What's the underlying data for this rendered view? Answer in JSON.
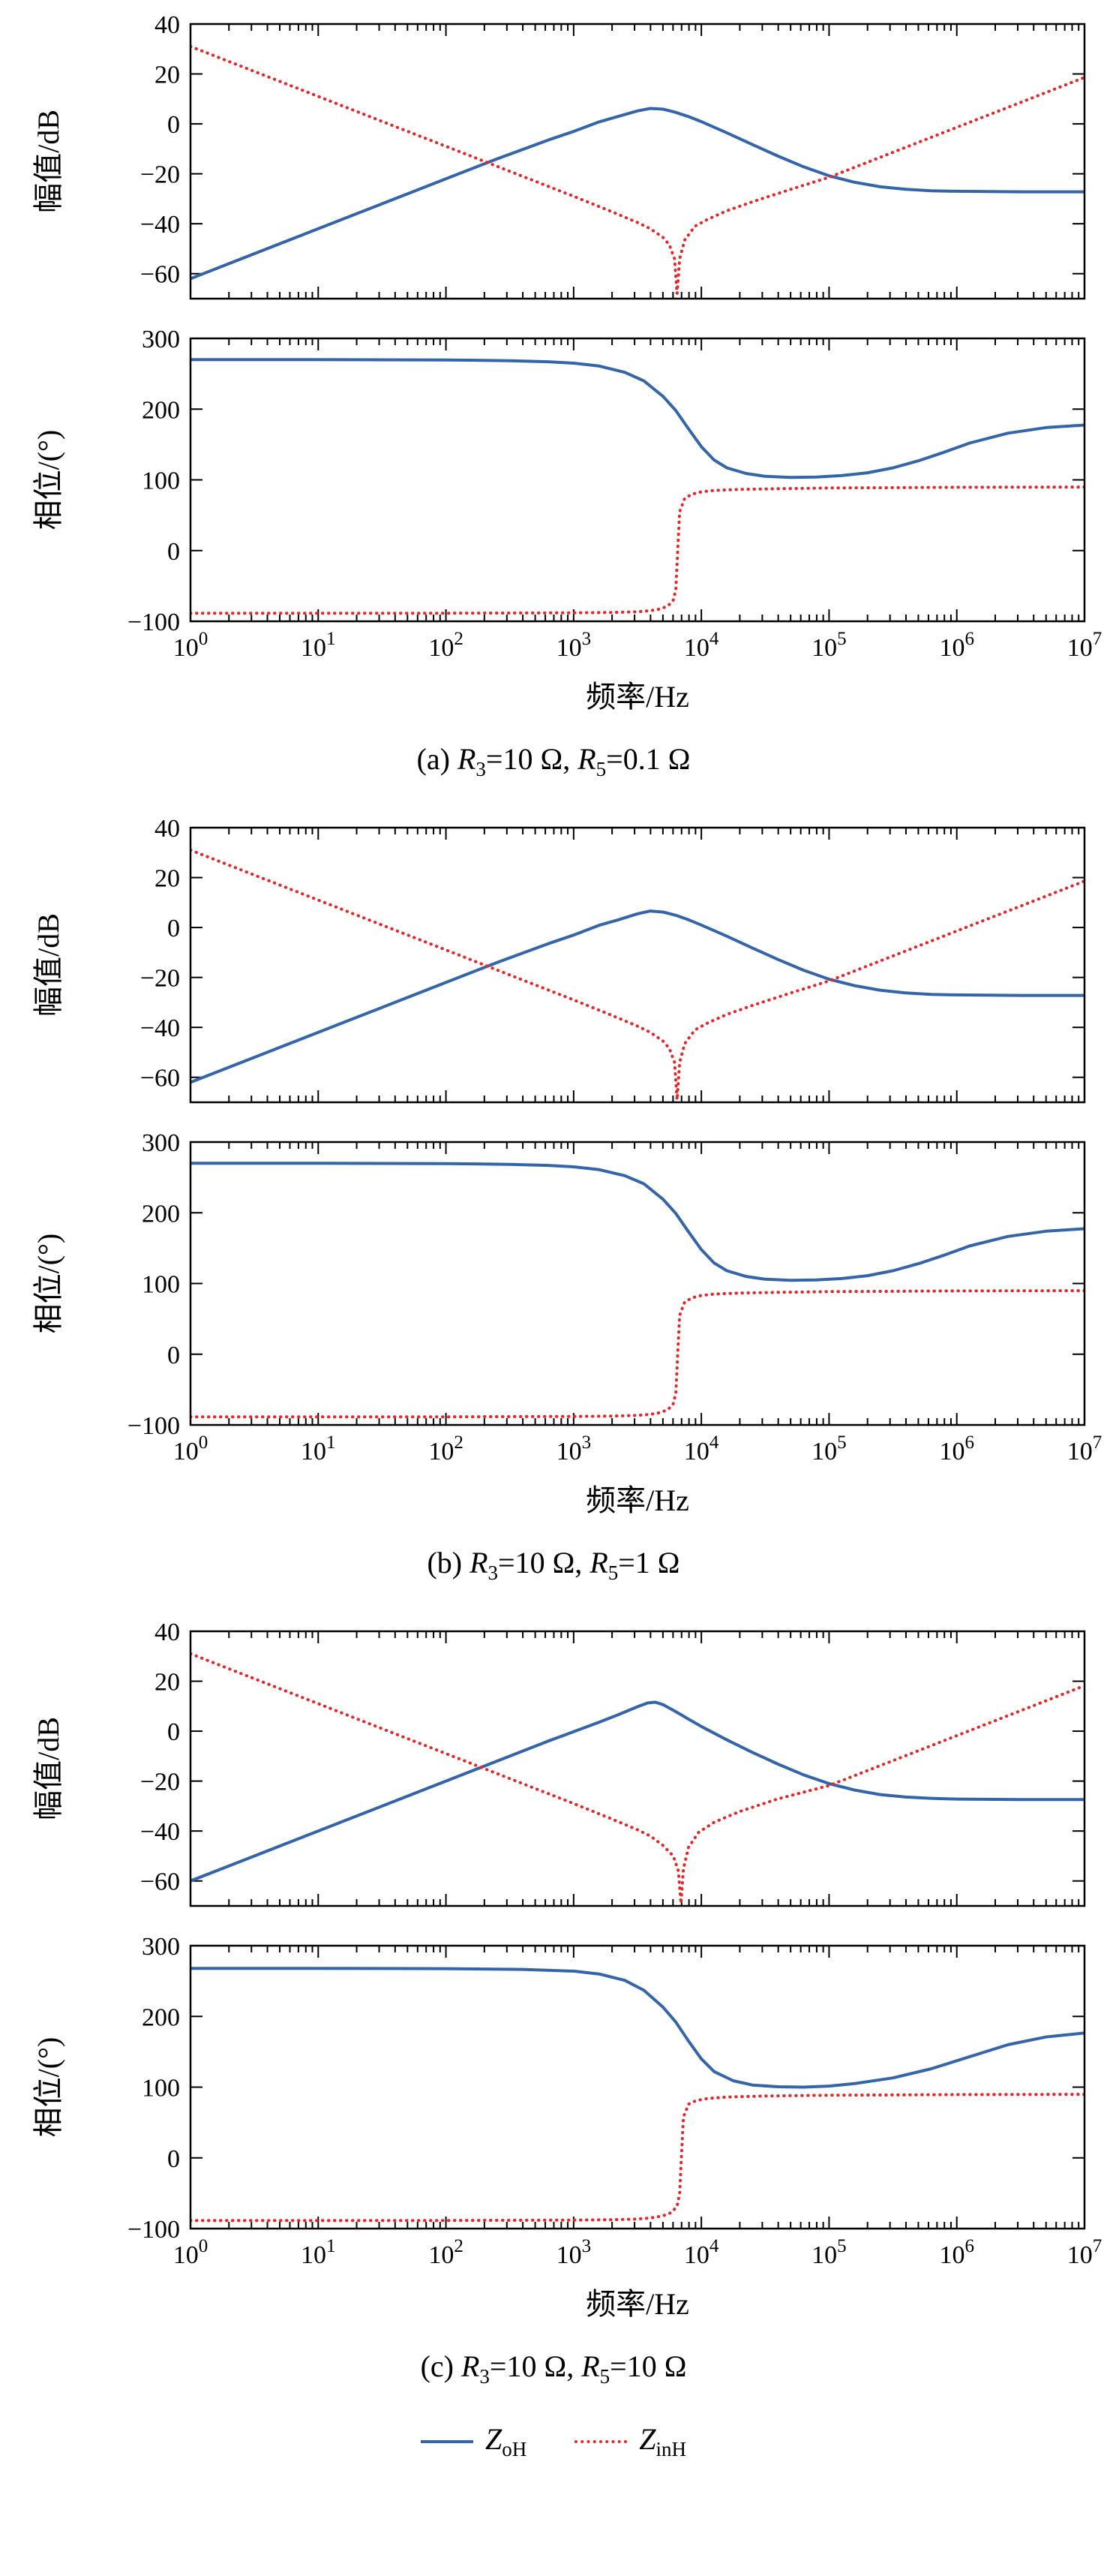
{
  "figures": [
    {
      "id": "a",
      "caption": {
        "prefix": "(a) ",
        "var1": "R",
        "sub1": "3",
        "mid": "=10 Ω, ",
        "var2": "R",
        "sub2": "5",
        "val2": "=0.1 Ω"
      }
    },
    {
      "id": "b",
      "caption": {
        "prefix": "(b) ",
        "var1": "R",
        "sub1": "3",
        "mid": "=10 Ω, ",
        "var2": "R",
        "sub2": "5",
        "val2": "=1 Ω"
      }
    },
    {
      "id": "c",
      "caption": {
        "prefix": "(c) ",
        "var1": "R",
        "sub1": "3",
        "mid": "=10 Ω, ",
        "var2": "R",
        "sub2": "5",
        "val2": "=10 Ω"
      }
    }
  ],
  "legend": {
    "items": [
      {
        "var": "Z",
        "sub": "oH",
        "color": "#3465aa",
        "style": "solid"
      },
      {
        "var": "Z",
        "sub": "inH",
        "color": "#e8262a",
        "style": "dotted"
      }
    ]
  },
  "colors": {
    "blue": "#3465aa",
    "red": "#e8262a",
    "axis": "#000000"
  },
  "chart_data": [
    {
      "id": "a-mag",
      "figure": "a",
      "panel": "top",
      "type": "line",
      "xscale": "log",
      "x_unit": "log10(Hz)",
      "xlim": [
        0,
        7
      ],
      "ylim": [
        -70,
        40
      ],
      "yticks": [
        40,
        20,
        0,
        -20,
        -40,
        -60
      ],
      "xticks_exp": [
        0,
        1,
        2,
        3,
        4,
        5,
        6,
        7
      ],
      "show_xtick_labels": false,
      "xlabel": "",
      "ylabel": "幅值/dB",
      "series": [
        {
          "name": "ZoH",
          "color": "#3465aa",
          "style": "solid",
          "x": [
            0,
            0.4,
            0.8,
            1.2,
            1.6,
            2.0,
            2.4,
            2.8,
            3.0,
            3.2,
            3.35,
            3.5,
            3.6,
            3.7,
            3.8,
            3.9,
            4.0,
            4.2,
            4.4,
            4.6,
            4.8,
            5.0,
            5.2,
            5.4,
            5.6,
            5.8,
            6.0,
            6.5,
            7.0
          ],
          "y": [
            -62,
            -54,
            -46,
            -38,
            -30,
            -22,
            -14,
            -6.5,
            -3,
            0.8,
            3.0,
            5.2,
            6.2,
            5.9,
            4.6,
            2.9,
            0.9,
            -3.6,
            -8.3,
            -12.9,
            -17.2,
            -20.8,
            -23.4,
            -25.2,
            -26.2,
            -26.8,
            -27,
            -27.2,
            -27.2
          ]
        },
        {
          "name": "ZinH",
          "color": "#e8262a",
          "style": "dotted",
          "x": [
            0,
            0.5,
            1.0,
            1.5,
            2.0,
            2.5,
            3.0,
            3.3,
            3.5,
            3.6,
            3.7,
            3.75,
            3.79,
            3.81,
            3.83,
            3.87,
            3.95,
            4.05,
            4.2,
            4.4,
            4.7,
            5.0,
            5.5,
            6.0,
            6.5,
            7.0
          ],
          "y": [
            31,
            21,
            11,
            1,
            -9,
            -19,
            -29,
            -35.2,
            -39.5,
            -42,
            -45.5,
            -48.5,
            -54,
            -68,
            -54,
            -46.5,
            -41,
            -38.2,
            -34.8,
            -31.2,
            -26.2,
            -21.4,
            -11.4,
            -1.4,
            8.6,
            18.6
          ]
        }
      ]
    },
    {
      "id": "a-phase",
      "figure": "a",
      "panel": "bottom",
      "type": "line",
      "xscale": "log",
      "x_unit": "log10(Hz)",
      "xlim": [
        0,
        7
      ],
      "ylim": [
        -100,
        300
      ],
      "yticks": [
        300,
        200,
        100,
        0,
        -100
      ],
      "xticks_exp": [
        0,
        1,
        2,
        3,
        4,
        5,
        6,
        7
      ],
      "show_xtick_labels": true,
      "xlabel": "频率/Hz",
      "ylabel": "相位/(°)",
      "series": [
        {
          "name": "ZoH",
          "color": "#3465aa",
          "style": "solid",
          "x": [
            0,
            1.0,
            2.0,
            2.5,
            2.8,
            3.0,
            3.2,
            3.4,
            3.55,
            3.7,
            3.8,
            3.9,
            4.0,
            4.1,
            4.2,
            4.35,
            4.5,
            4.7,
            4.9,
            5.1,
            5.3,
            5.5,
            5.7,
            5.9,
            6.1,
            6.4,
            6.7,
            7.0
          ],
          "y": [
            270,
            270,
            269.5,
            268.5,
            267,
            265,
            261,
            252,
            240,
            218,
            198,
            172,
            147,
            128,
            117,
            109,
            105,
            103.5,
            104,
            106,
            110,
            117,
            127,
            139,
            152,
            166,
            174,
            177.5
          ]
        },
        {
          "name": "ZinH",
          "color": "#e8262a",
          "style": "dotted",
          "x": [
            0,
            1,
            2,
            3,
            3.3,
            3.5,
            3.6,
            3.68,
            3.74,
            3.78,
            3.8,
            3.815,
            3.83,
            3.87,
            3.93,
            4.0,
            4.1,
            4.3,
            4.6,
            5.0,
            5.5,
            6.0,
            7.0
          ],
          "y": [
            -88.5,
            -88.5,
            -88.5,
            -88,
            -87.5,
            -86.5,
            -85,
            -82.5,
            -78,
            -70,
            -55,
            0,
            55,
            74,
            80,
            83,
            85,
            86.5,
            87.5,
            88.5,
            89,
            89.5,
            89.8
          ]
        }
      ]
    },
    {
      "id": "b-mag",
      "figure": "b",
      "panel": "top",
      "type": "line",
      "xscale": "log",
      "x_unit": "log10(Hz)",
      "xlim": [
        0,
        7
      ],
      "ylim": [
        -70,
        40
      ],
      "yticks": [
        40,
        20,
        0,
        -20,
        -40,
        -60
      ],
      "xticks_exp": [
        0,
        1,
        2,
        3,
        4,
        5,
        6,
        7
      ],
      "show_xtick_labels": false,
      "xlabel": "",
      "ylabel": "幅值/dB",
      "series": [
        {
          "name": "ZoH",
          "color": "#3465aa",
          "style": "solid",
          "x": [
            0,
            0.4,
            0.8,
            1.2,
            1.6,
            2.0,
            2.4,
            2.8,
            3.0,
            3.2,
            3.35,
            3.5,
            3.6,
            3.7,
            3.8,
            3.9,
            4.0,
            4.2,
            4.4,
            4.6,
            4.8,
            5.0,
            5.2,
            5.4,
            5.6,
            5.8,
            6.0,
            6.5,
            7.0
          ],
          "y": [
            -62,
            -54,
            -46,
            -38,
            -30,
            -22,
            -14,
            -6.5,
            -3,
            0.9,
            3.1,
            5.5,
            6.6,
            6.2,
            4.9,
            3.1,
            1.0,
            -3.5,
            -8.2,
            -12.8,
            -17.1,
            -20.7,
            -23.3,
            -25.1,
            -26.2,
            -26.8,
            -27,
            -27.2,
            -27.2
          ]
        },
        {
          "name": "ZinH",
          "color": "#e8262a",
          "style": "dotted",
          "x": [
            0,
            0.5,
            1.0,
            1.5,
            2.0,
            2.5,
            3.0,
            3.3,
            3.5,
            3.6,
            3.7,
            3.75,
            3.79,
            3.81,
            3.83,
            3.87,
            3.95,
            4.05,
            4.2,
            4.4,
            4.7,
            5.0,
            5.5,
            6.0,
            6.5,
            7.0
          ],
          "y": [
            31,
            21,
            11,
            1,
            -9,
            -19,
            -29,
            -35.2,
            -39.5,
            -42,
            -45.5,
            -48.5,
            -54,
            -69,
            -54,
            -46.5,
            -41,
            -38.2,
            -34.8,
            -31.2,
            -26.2,
            -21.4,
            -11.4,
            -1.4,
            8.6,
            18.6
          ]
        }
      ]
    },
    {
      "id": "b-phase",
      "figure": "b",
      "panel": "bottom",
      "type": "line",
      "xscale": "log",
      "x_unit": "log10(Hz)",
      "xlim": [
        0,
        7
      ],
      "ylim": [
        -100,
        300
      ],
      "yticks": [
        300,
        200,
        100,
        0,
        -100
      ],
      "xticks_exp": [
        0,
        1,
        2,
        3,
        4,
        5,
        6,
        7
      ],
      "show_xtick_labels": true,
      "xlabel": "频率/Hz",
      "ylabel": "相位/(°)",
      "series": [
        {
          "name": "ZoH",
          "color": "#3465aa",
          "style": "solid",
          "x": [
            0,
            1.0,
            2.0,
            2.5,
            2.8,
            3.0,
            3.2,
            3.4,
            3.55,
            3.7,
            3.8,
            3.9,
            4.0,
            4.1,
            4.2,
            4.35,
            4.5,
            4.7,
            4.9,
            5.1,
            5.3,
            5.5,
            5.7,
            5.9,
            6.1,
            6.4,
            6.7,
            7.0
          ],
          "y": [
            270,
            270,
            269.5,
            268.5,
            267,
            265,
            261,
            252.5,
            241,
            219,
            199,
            173,
            148,
            129,
            118,
            110,
            106,
            104.5,
            105,
            107,
            111,
            118,
            128,
            140,
            153,
            166.5,
            174,
            177.5
          ]
        },
        {
          "name": "ZinH",
          "color": "#e8262a",
          "style": "dotted",
          "x": [
            0,
            1,
            2,
            3,
            3.3,
            3.5,
            3.6,
            3.68,
            3.74,
            3.78,
            3.8,
            3.815,
            3.83,
            3.87,
            3.93,
            4.0,
            4.1,
            4.3,
            4.6,
            5.0,
            5.5,
            6.0,
            7.0
          ],
          "y": [
            -88.5,
            -88.5,
            -88.5,
            -88,
            -87.5,
            -86.5,
            -85,
            -82.5,
            -78,
            -70,
            -55,
            0,
            55,
            74,
            80,
            83,
            85,
            86.5,
            87.5,
            88.5,
            89,
            89.5,
            89.8
          ]
        }
      ]
    },
    {
      "id": "c-mag",
      "figure": "c",
      "panel": "top",
      "type": "line",
      "xscale": "log",
      "x_unit": "log10(Hz)",
      "xlim": [
        0,
        7
      ],
      "ylim": [
        -70,
        40
      ],
      "yticks": [
        40,
        20,
        0,
        -20,
        -40,
        -60
      ],
      "xticks_exp": [
        0,
        1,
        2,
        3,
        4,
        5,
        6,
        7
      ],
      "show_xtick_labels": false,
      "xlabel": "",
      "ylabel": "幅值/dB",
      "series": [
        {
          "name": "ZoH",
          "color": "#3465aa",
          "style": "solid",
          "x": [
            0,
            0.4,
            0.8,
            1.2,
            1.6,
            2.0,
            2.4,
            2.8,
            3.0,
            3.2,
            3.35,
            3.5,
            3.58,
            3.64,
            3.7,
            3.8,
            3.9,
            4.0,
            4.2,
            4.4,
            4.6,
            4.8,
            5.0,
            5.2,
            5.4,
            5.6,
            5.8,
            6.0,
            6.5,
            7.0
          ],
          "y": [
            -60,
            -52,
            -44,
            -36,
            -28,
            -20,
            -12,
            -4,
            -0.2,
            3.6,
            6.6,
            9.8,
            11.3,
            11.6,
            10.6,
            7.8,
            4.8,
            1.9,
            -3.5,
            -8.5,
            -13.2,
            -17.5,
            -21,
            -23.6,
            -25.4,
            -26.4,
            -26.9,
            -27.2,
            -27.4,
            -27.4
          ]
        },
        {
          "name": "ZinH",
          "color": "#e8262a",
          "style": "dotted",
          "x": [
            0,
            0.5,
            1.0,
            1.5,
            2.0,
            2.5,
            3.0,
            3.3,
            3.5,
            3.6,
            3.7,
            3.78,
            3.82,
            3.84,
            3.86,
            3.9,
            3.98,
            4.1,
            4.3,
            4.6,
            5.0,
            5.5,
            6.0,
            6.5,
            7.0
          ],
          "y": [
            31,
            21,
            11,
            1,
            -9,
            -19,
            -29,
            -35.2,
            -39.5,
            -42,
            -45.8,
            -50,
            -56,
            -69,
            -55,
            -46.5,
            -40.5,
            -36.5,
            -32.2,
            -27.1,
            -21.8,
            -11.8,
            -1.8,
            8.2,
            18.2
          ]
        }
      ]
    },
    {
      "id": "c-phase",
      "figure": "c",
      "panel": "bottom",
      "type": "line",
      "xscale": "log",
      "x_unit": "log10(Hz)",
      "xlim": [
        0,
        7
      ],
      "ylim": [
        -100,
        300
      ],
      "yticks": [
        300,
        200,
        100,
        0,
        -100
      ],
      "xticks_exp": [
        0,
        1,
        2,
        3,
        4,
        5,
        6,
        7
      ],
      "show_xtick_labels": true,
      "xlabel": "频率/Hz",
      "ylabel": "相位/(°)",
      "series": [
        {
          "name": "ZoH",
          "color": "#3465aa",
          "style": "solid",
          "x": [
            0,
            1,
            2,
            2.6,
            3.0,
            3.2,
            3.4,
            3.55,
            3.7,
            3.8,
            3.9,
            4.0,
            4.1,
            4.25,
            4.4,
            4.6,
            4.8,
            5.0,
            5.2,
            5.5,
            5.8,
            6.1,
            6.4,
            6.7,
            7.0
          ],
          "y": [
            268,
            268,
            267.5,
            266.5,
            264,
            260,
            251,
            237,
            213,
            192,
            165,
            140,
            122,
            109,
            103,
            100.5,
            100,
            101.5,
            105,
            113,
            126,
            143,
            160,
            171,
            176.5
          ]
        },
        {
          "name": "ZinH",
          "color": "#e8262a",
          "style": "dotted",
          "x": [
            0,
            1,
            2,
            3,
            3.3,
            3.5,
            3.6,
            3.7,
            3.77,
            3.81,
            3.83,
            3.845,
            3.86,
            3.9,
            3.96,
            4.05,
            4.2,
            4.5,
            5.0,
            5.5,
            6.0,
            7.0
          ],
          "y": [
            -88.5,
            -88.5,
            -88.5,
            -88,
            -87.5,
            -86.5,
            -85,
            -82,
            -77,
            -68,
            -50,
            5,
            58,
            76,
            81,
            84,
            86,
            87.5,
            88.5,
            89,
            89.5,
            89.8
          ]
        }
      ]
    }
  ]
}
